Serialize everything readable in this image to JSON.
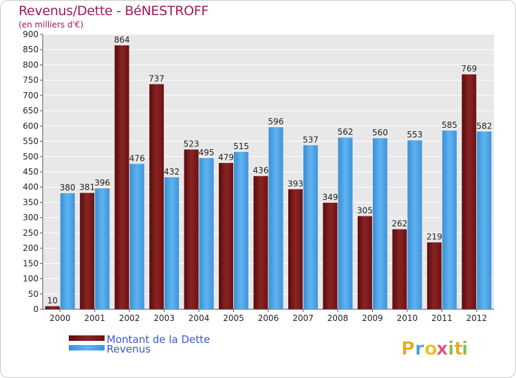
{
  "chart_data": {
    "type": "bar",
    "title": "Revenus/Dette - BéNESTROFF",
    "subtitle": "(en milliers d'€)",
    "categories": [
      "2000",
      "2001",
      "2002",
      "2003",
      "2004",
      "2005",
      "2006",
      "2007",
      "2008",
      "2009",
      "2010",
      "2011",
      "2012"
    ],
    "series": [
      {
        "name": "Montant de la Dette",
        "color": "#7a1616",
        "values": [
          10,
          381,
          864,
          737,
          523,
          479,
          436,
          393,
          349,
          305,
          262,
          219,
          769
        ]
      },
      {
        "name": "Revenus",
        "color": "#4aa3e6",
        "values": [
          380,
          396,
          476,
          432,
          495,
          515,
          596,
          537,
          562,
          560,
          553,
          585,
          582
        ]
      }
    ],
    "ylim": [
      0,
      900
    ],
    "yticks": [
      0,
      50,
      100,
      150,
      200,
      250,
      300,
      350,
      400,
      450,
      500,
      550,
      600,
      650,
      700,
      750,
      800,
      850,
      900
    ],
    "grid": true,
    "legend_position": "bottom-left"
  },
  "logo": {
    "letters": [
      "P",
      "r",
      "o",
      "x",
      "i",
      "t",
      "i"
    ],
    "colors": [
      "#e8a81d",
      "#3ba0dc",
      "#e8c01d",
      "#e0507a",
      "#7cc04a",
      "#e8a81d",
      "#7cc04a"
    ]
  }
}
